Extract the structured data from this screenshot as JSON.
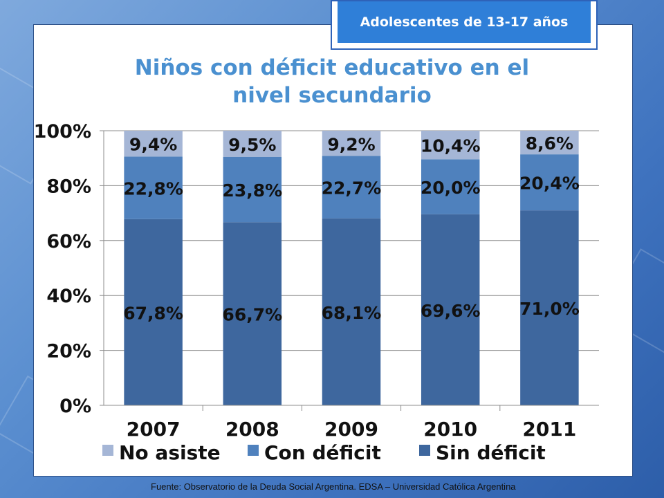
{
  "badge": "Adolescentes de 13-17 años",
  "source": "Fuente: Observatorio de la Deuda Social Argentina. EDSA – Universidad Católica Argentina",
  "colors": {
    "no_asiste": "#a5b6d6",
    "con_deficit": "#4f81bd",
    "sin_deficit": "#3e679e"
  },
  "chart_data": {
    "type": "bar",
    "stacked": true,
    "title": "Niños con déficit educativo en el nivel secundario",
    "categories": [
      "2007",
      "2008",
      "2009",
      "2010",
      "2011"
    ],
    "series": [
      {
        "name": "Sin déficit",
        "values": [
          67.8,
          66.7,
          68.1,
          69.6,
          71.0
        ],
        "labels": [
          "67,8%",
          "66,7%",
          "68,1%",
          "69,6%",
          "71,0%"
        ]
      },
      {
        "name": "Con déficit",
        "values": [
          22.8,
          23.8,
          22.7,
          20.0,
          20.4
        ],
        "labels": [
          "22,8%",
          "23,8%",
          "22,7%",
          "20,0%",
          "20,4%"
        ]
      },
      {
        "name": "No asiste",
        "values": [
          9.4,
          9.5,
          9.2,
          10.4,
          8.6
        ],
        "labels": [
          "9,4%",
          "9,5%",
          "9,2%",
          "10,4%",
          "8,6%"
        ]
      }
    ],
    "legend_order": [
      "No asiste",
      "Con déficit",
      "Sin déficit"
    ],
    "ylim": [
      0,
      100
    ],
    "yticks": [
      "0%",
      "20%",
      "40%",
      "60%",
      "80%",
      "100%"
    ],
    "grid": true,
    "legend_position": "bottom"
  }
}
